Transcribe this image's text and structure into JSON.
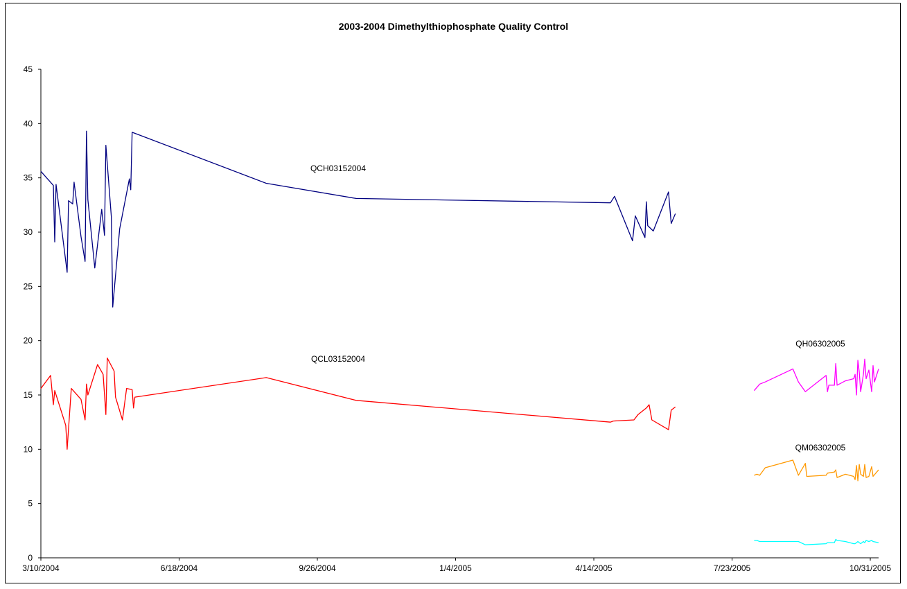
{
  "chart_data": {
    "type": "line",
    "title": "2003-2004 Dimethylthiophosphate Quality Control",
    "xlabel": "",
    "ylabel": "",
    "ylim": [
      0,
      45
    ],
    "yticks": [
      0,
      5,
      10,
      15,
      20,
      25,
      30,
      35,
      40,
      45
    ],
    "xlim": [
      "2004-03-10",
      "2005-11-06"
    ],
    "xticks": [
      "2004-03-10",
      "2004-06-18",
      "2004-09-26",
      "2005-01-04",
      "2005-04-14",
      "2005-07-23",
      "2005-10-31"
    ],
    "xtick_labels": [
      "3/10/2004",
      "6/18/2004",
      "9/26/2004",
      "1/4/2005",
      "4/14/2005",
      "7/23/2005",
      "10/31/2005"
    ],
    "grid": false,
    "legend": "none",
    "series": [
      {
        "name": "QCH03152004",
        "color": "#000080",
        "points": [
          [
            "2004-03-10",
            35.6
          ],
          [
            "2004-03-19",
            34.3
          ],
          [
            "2004-03-20",
            29.1
          ],
          [
            "2004-03-21",
            34.4
          ],
          [
            "2004-03-29",
            26.3
          ],
          [
            "2004-03-30",
            32.9
          ],
          [
            "2004-04-02",
            32.6
          ],
          [
            "2004-04-03",
            34.6
          ],
          [
            "2004-04-08",
            29.6
          ],
          [
            "2004-04-11",
            27.3
          ],
          [
            "2004-04-12",
            39.3
          ],
          [
            "2004-04-13",
            33.0
          ],
          [
            "2004-04-18",
            26.7
          ],
          [
            "2004-04-23",
            32.1
          ],
          [
            "2004-04-25",
            29.7
          ],
          [
            "2004-04-26",
            38.0
          ],
          [
            "2004-04-30",
            31.4
          ],
          [
            "2004-05-01",
            23.1
          ],
          [
            "2004-05-06",
            30.3
          ],
          [
            "2004-05-13",
            34.9
          ],
          [
            "2004-05-14",
            33.9
          ],
          [
            "2004-05-15",
            39.2
          ],
          [
            "2004-08-20",
            34.5
          ],
          [
            "2004-10-24",
            33.1
          ],
          [
            "2005-04-26",
            32.7
          ],
          [
            "2005-04-29",
            33.3
          ],
          [
            "2005-05-12",
            29.2
          ],
          [
            "2005-05-14",
            31.5
          ],
          [
            "2005-05-21",
            29.5
          ],
          [
            "2005-05-22",
            32.8
          ],
          [
            "2005-05-23",
            30.6
          ],
          [
            "2005-05-27",
            30.1
          ],
          [
            "2005-06-07",
            33.7
          ],
          [
            "2005-06-09",
            30.8
          ],
          [
            "2005-06-12",
            31.7
          ]
        ]
      },
      {
        "name": "QCL03152004",
        "color": "#ff0000",
        "points": [
          [
            "2004-03-10",
            15.6
          ],
          [
            "2004-03-17",
            16.8
          ],
          [
            "2004-03-19",
            14.1
          ],
          [
            "2004-03-20",
            15.4
          ],
          [
            "2004-03-28",
            12.2
          ],
          [
            "2004-03-29",
            10.0
          ],
          [
            "2004-04-01",
            15.6
          ],
          [
            "2004-04-08",
            14.6
          ],
          [
            "2004-04-11",
            12.7
          ],
          [
            "2004-04-12",
            16.0
          ],
          [
            "2004-04-13",
            15.0
          ],
          [
            "2004-04-20",
            17.8
          ],
          [
            "2004-04-24",
            16.9
          ],
          [
            "2004-04-26",
            13.2
          ],
          [
            "2004-04-27",
            18.4
          ],
          [
            "2004-05-02",
            17.2
          ],
          [
            "2004-05-03",
            14.8
          ],
          [
            "2004-05-08",
            12.7
          ],
          [
            "2004-05-11",
            15.6
          ],
          [
            "2004-05-15",
            15.5
          ],
          [
            "2004-05-16",
            13.8
          ],
          [
            "2004-05-17",
            14.8
          ],
          [
            "2004-08-20",
            16.6
          ],
          [
            "2004-10-24",
            14.5
          ],
          [
            "2005-04-26",
            12.5
          ],
          [
            "2005-04-28",
            12.6
          ],
          [
            "2005-05-13",
            12.7
          ],
          [
            "2005-05-16",
            13.2
          ],
          [
            "2005-05-22",
            13.8
          ],
          [
            "2005-05-24",
            14.1
          ],
          [
            "2005-05-26",
            12.7
          ],
          [
            "2005-06-07",
            11.8
          ],
          [
            "2005-06-09",
            13.6
          ],
          [
            "2005-06-12",
            13.9
          ]
        ]
      },
      {
        "name": "QH06302005",
        "color": "#ff00ff",
        "points": [
          [
            "2005-08-08",
            15.4
          ],
          [
            "2005-08-12",
            16.0
          ],
          [
            "2005-08-16",
            16.2
          ],
          [
            "2005-09-05",
            17.4
          ],
          [
            "2005-09-09",
            16.2
          ],
          [
            "2005-09-14",
            15.3
          ],
          [
            "2005-09-29",
            16.8
          ],
          [
            "2005-09-30",
            15.3
          ],
          [
            "2005-10-01",
            15.9
          ],
          [
            "2005-10-05",
            15.9
          ],
          [
            "2005-10-06",
            17.9
          ],
          [
            "2005-10-07",
            15.9
          ],
          [
            "2005-10-13",
            16.3
          ],
          [
            "2005-10-19",
            16.5
          ],
          [
            "2005-10-20",
            16.9
          ],
          [
            "2005-10-21",
            15.0
          ],
          [
            "2005-10-22",
            18.2
          ],
          [
            "2005-10-23",
            17.1
          ],
          [
            "2005-10-24",
            15.3
          ],
          [
            "2005-10-26",
            16.9
          ],
          [
            "2005-10-27",
            18.3
          ],
          [
            "2005-10-28",
            16.5
          ],
          [
            "2005-10-30",
            17.3
          ],
          [
            "2005-11-01",
            15.3
          ],
          [
            "2005-11-02",
            17.7
          ],
          [
            "2005-11-03",
            16.2
          ],
          [
            "2005-11-06",
            17.4
          ]
        ]
      },
      {
        "name": "QM06302005",
        "color": "#ff9900",
        "points": [
          [
            "2005-08-08",
            7.6
          ],
          [
            "2005-08-10",
            7.7
          ],
          [
            "2005-08-12",
            7.6
          ],
          [
            "2005-08-16",
            8.3
          ],
          [
            "2005-09-05",
            9.0
          ],
          [
            "2005-09-09",
            7.6
          ],
          [
            "2005-09-14",
            8.7
          ],
          [
            "2005-09-15",
            7.5
          ],
          [
            "2005-09-29",
            7.6
          ],
          [
            "2005-09-30",
            7.8
          ],
          [
            "2005-10-05",
            7.9
          ],
          [
            "2005-10-06",
            8.1
          ],
          [
            "2005-10-07",
            7.4
          ],
          [
            "2005-10-13",
            7.7
          ],
          [
            "2005-10-19",
            7.5
          ],
          [
            "2005-10-20",
            7.2
          ],
          [
            "2005-10-21",
            8.5
          ],
          [
            "2005-10-22",
            7.1
          ],
          [
            "2005-10-23",
            8.6
          ],
          [
            "2005-10-24",
            7.7
          ],
          [
            "2005-10-26",
            7.5
          ],
          [
            "2005-10-27",
            8.6
          ],
          [
            "2005-10-28",
            7.4
          ],
          [
            "2005-10-30",
            7.5
          ],
          [
            "2005-11-01",
            8.4
          ],
          [
            "2005-11-02",
            7.5
          ],
          [
            "2005-11-06",
            8.1
          ]
        ]
      },
      {
        "color": "#00ffff",
        "points": [
          [
            "2005-08-08",
            1.6
          ],
          [
            "2005-08-10",
            1.6
          ],
          [
            "2005-08-12",
            1.5
          ],
          [
            "2005-08-16",
            1.5
          ],
          [
            "2005-09-05",
            1.5
          ],
          [
            "2005-09-09",
            1.5
          ],
          [
            "2005-09-14",
            1.2
          ],
          [
            "2005-09-29",
            1.3
          ],
          [
            "2005-09-30",
            1.4
          ],
          [
            "2005-10-05",
            1.4
          ],
          [
            "2005-10-06",
            1.7
          ],
          [
            "2005-10-07",
            1.6
          ],
          [
            "2005-10-13",
            1.5
          ],
          [
            "2005-10-19",
            1.3
          ],
          [
            "2005-10-20",
            1.3
          ],
          [
            "2005-10-21",
            1.4
          ],
          [
            "2005-10-22",
            1.5
          ],
          [
            "2005-10-23",
            1.4
          ],
          [
            "2005-10-24",
            1.3
          ],
          [
            "2005-10-26",
            1.5
          ],
          [
            "2005-10-27",
            1.4
          ],
          [
            "2005-10-28",
            1.6
          ],
          [
            "2005-10-30",
            1.5
          ],
          [
            "2005-11-01",
            1.6
          ],
          [
            "2005-11-02",
            1.5
          ],
          [
            "2005-11-06",
            1.4
          ]
        ]
      }
    ]
  }
}
